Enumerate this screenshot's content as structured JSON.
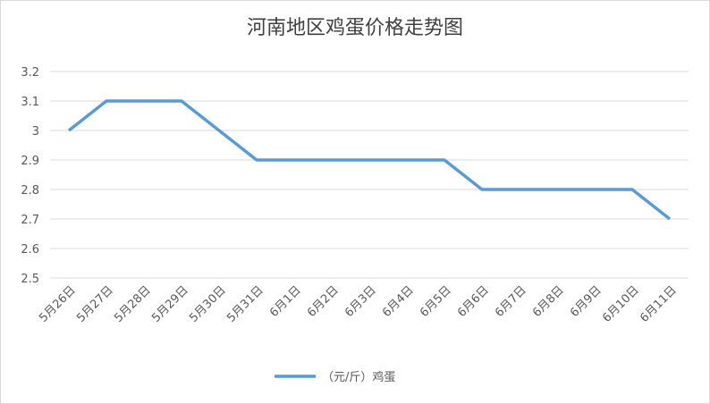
{
  "chart_data": {
    "type": "line",
    "title": "河南地区鸡蛋价格走势图",
    "categories": [
      "5月26日",
      "5月27日",
      "5月28日",
      "5月29日",
      "5月30日",
      "5月31日",
      "6月1日",
      "6月2日",
      "6月3日",
      "6月4日",
      "6月5日",
      "6月6日",
      "6月7日",
      "6月8日",
      "6月9日",
      "6月10日",
      "6月11日"
    ],
    "series": [
      {
        "name": "（元/斤）鸡蛋",
        "color": "#5b9bd5",
        "values": [
          3,
          3.1,
          3.1,
          3.1,
          3,
          2.9,
          2.9,
          2.9,
          2.9,
          2.9,
          2.9,
          2.8,
          2.8,
          2.8,
          2.8,
          2.8,
          2.7
        ]
      }
    ],
    "ylim": [
      2.5,
      3.2
    ],
    "yticks": [
      2.5,
      2.6,
      2.7,
      2.8,
      2.9,
      3,
      3.1,
      3.2
    ],
    "grid": true,
    "legend": "bottom"
  }
}
